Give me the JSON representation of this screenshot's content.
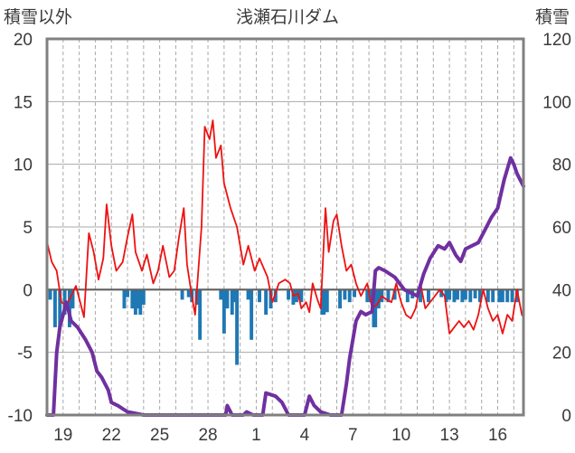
{
  "chart_data": {
    "type": "bar+line",
    "title": "浅瀬石川ダム",
    "left_axis": {
      "label": "積雪以外",
      "ylim": [
        -10,
        20
      ],
      "ticks": [
        "-10",
        "-5",
        "0",
        "5",
        "10",
        "15",
        "20"
      ]
    },
    "right_axis": {
      "label": "積雪",
      "ylim": [
        0,
        120
      ],
      "ticks": [
        "0",
        "20",
        "40",
        "60",
        "80",
        "100",
        "120"
      ]
    },
    "x_ticks": [
      "19",
      "22",
      "25",
      "28",
      "1",
      "4",
      "7",
      "10",
      "13",
      "16"
    ],
    "x_tick_day_index": [
      1,
      4,
      7,
      10,
      13,
      16,
      19,
      22,
      25,
      28
    ],
    "x_range_days": [
      0,
      29.6
    ],
    "grid": {
      "vertical_dashed": true,
      "horizontal": true
    },
    "colors": {
      "temperature": "#ee1111",
      "precipitation": "#1f78b4",
      "snow_depth": "#7030a0",
      "zero_line": "#606060",
      "frame": "#808080",
      "grid": "#a8a8a8"
    },
    "series": [
      {
        "axis": "left",
        "type": "line",
        "color": "#ee1111",
        "points": [
          [
            0,
            3.8
          ],
          [
            0.3,
            2.2
          ],
          [
            0.6,
            1.5
          ],
          [
            0.9,
            -1.0
          ],
          [
            1.2,
            -1.3
          ],
          [
            1.5,
            -0.5
          ],
          [
            1.8,
            0.3
          ],
          [
            2.1,
            -1.2
          ],
          [
            2.3,
            -2.2
          ],
          [
            2.6,
            4.5
          ],
          [
            2.9,
            3.0
          ],
          [
            3.2,
            0.8
          ],
          [
            3.5,
            2.5
          ],
          [
            3.7,
            6.8
          ],
          [
            4.0,
            3.5
          ],
          [
            4.3,
            1.5
          ],
          [
            4.7,
            2.2
          ],
          [
            5.0,
            4.2
          ],
          [
            5.3,
            6.0
          ],
          [
            5.5,
            3.0
          ],
          [
            5.9,
            1.5
          ],
          [
            6.2,
            2.8
          ],
          [
            6.6,
            0.5
          ],
          [
            6.9,
            1.5
          ],
          [
            7.2,
            3.5
          ],
          [
            7.6,
            1.0
          ],
          [
            7.9,
            1.5
          ],
          [
            8.2,
            4.2
          ],
          [
            8.5,
            6.5
          ],
          [
            8.7,
            2.0
          ],
          [
            9.0,
            -0.5
          ],
          [
            9.2,
            -2.0
          ],
          [
            9.6,
            5.0
          ],
          [
            9.8,
            13.0
          ],
          [
            10.1,
            12.0
          ],
          [
            10.3,
            13.5
          ],
          [
            10.5,
            10.5
          ],
          [
            10.8,
            11.5
          ],
          [
            11.0,
            8.5
          ],
          [
            11.4,
            6.5
          ],
          [
            11.8,
            5.0
          ],
          [
            12.2,
            2.0
          ],
          [
            12.5,
            3.5
          ],
          [
            12.9,
            1.5
          ],
          [
            13.2,
            2.5
          ],
          [
            13.7,
            1.0
          ],
          [
            14.0,
            -1.0
          ],
          [
            14.4,
            0.5
          ],
          [
            14.8,
            0.8
          ],
          [
            15.1,
            0.5
          ],
          [
            15.3,
            -0.5
          ],
          [
            15.6,
            -0.3
          ],
          [
            15.8,
            -1.5
          ],
          [
            16.1,
            -1.0
          ],
          [
            16.3,
            -1.8
          ],
          [
            16.5,
            0.5
          ],
          [
            16.8,
            -0.8
          ],
          [
            17.0,
            -1.5
          ],
          [
            17.3,
            6.5
          ],
          [
            17.5,
            3.0
          ],
          [
            17.8,
            5.5
          ],
          [
            18.0,
            6.0
          ],
          [
            18.3,
            3.5
          ],
          [
            18.6,
            1.5
          ],
          [
            18.9,
            2.0
          ],
          [
            19.2,
            0.5
          ],
          [
            19.5,
            -0.5
          ],
          [
            19.9,
            0.5
          ],
          [
            20.2,
            -1.5
          ],
          [
            20.5,
            -1.2
          ],
          [
            20.8,
            -0.5
          ],
          [
            21.1,
            -0.8
          ],
          [
            21.4,
            -1.0
          ],
          [
            21.7,
            0.5
          ],
          [
            22.0,
            -1.0
          ],
          [
            22.3,
            -2.0
          ],
          [
            22.6,
            -2.3
          ],
          [
            22.9,
            -1.5
          ],
          [
            23.2,
            0.5
          ],
          [
            23.5,
            -1.5
          ],
          [
            23.8,
            -1.0
          ],
          [
            24.1,
            -0.5
          ],
          [
            24.4,
            0.0
          ],
          [
            24.7,
            -0.5
          ],
          [
            25.0,
            -3.5
          ],
          [
            25.3,
            -3.0
          ],
          [
            25.6,
            -2.5
          ],
          [
            25.9,
            -3.0
          ],
          [
            26.2,
            -2.5
          ],
          [
            26.5,
            -3.2
          ],
          [
            26.8,
            -2.0
          ],
          [
            27.1,
            0.0
          ],
          [
            27.4,
            -1.5
          ],
          [
            27.7,
            -2.5
          ],
          [
            28.0,
            -2.0
          ],
          [
            28.3,
            -3.5
          ],
          [
            28.6,
            -2.0
          ],
          [
            28.9,
            -2.5
          ],
          [
            29.2,
            0.0
          ],
          [
            29.5,
            -2.0
          ],
          [
            29.6,
            -2.2
          ]
        ]
      },
      {
        "axis": "left",
        "type": "bar",
        "color": "#1f78b4",
        "points": [
          [
            0.2,
            -0.8
          ],
          [
            0.5,
            -3.0
          ],
          [
            0.8,
            -3.0
          ],
          [
            1.1,
            -2.0
          ],
          [
            1.4,
            -3.0
          ],
          [
            1.6,
            -1.5
          ],
          [
            4.8,
            -1.5
          ],
          [
            5.0,
            -0.6
          ],
          [
            5.3,
            -1.5
          ],
          [
            5.5,
            -2.0
          ],
          [
            5.6,
            -1.5
          ],
          [
            5.8,
            -2.0
          ],
          [
            6.0,
            -1.2
          ],
          [
            8.4,
            -0.8
          ],
          [
            8.8,
            -0.6
          ],
          [
            9.0,
            -1.0
          ],
          [
            9.3,
            -1.2
          ],
          [
            9.5,
            -4.0
          ],
          [
            10.8,
            -0.8
          ],
          [
            11.0,
            -3.5
          ],
          [
            11.2,
            -1.5
          ],
          [
            11.5,
            -2.0
          ],
          [
            11.7,
            -1.0
          ],
          [
            11.8,
            -6.0
          ],
          [
            12.5,
            -0.8
          ],
          [
            12.7,
            -4.0
          ],
          [
            13.2,
            -1.0
          ],
          [
            13.6,
            -2.0
          ],
          [
            13.9,
            -1.5
          ],
          [
            14.2,
            -1.0
          ],
          [
            15.0,
            -0.8
          ],
          [
            15.3,
            -1.2
          ],
          [
            15.5,
            -1.0
          ],
          [
            15.6,
            -0.6
          ],
          [
            15.8,
            -1.0
          ],
          [
            17.1,
            -2.0
          ],
          [
            17.2,
            -2.0
          ],
          [
            17.4,
            -1.8
          ],
          [
            18.2,
            -1.5
          ],
          [
            18.5,
            -0.8
          ],
          [
            18.8,
            -1.0
          ],
          [
            19.1,
            -0.6
          ],
          [
            19.9,
            -1.0
          ],
          [
            20.1,
            -1.0
          ],
          [
            20.3,
            -3.0
          ],
          [
            20.4,
            -3.0
          ],
          [
            20.6,
            -1.5
          ],
          [
            20.8,
            -1.0
          ],
          [
            21.2,
            -1.0
          ],
          [
            21.6,
            -0.8
          ],
          [
            22.4,
            -1.0
          ],
          [
            22.7,
            -0.7
          ],
          [
            23.2,
            -1.0
          ],
          [
            23.7,
            -1.0
          ],
          [
            24.5,
            -0.6
          ],
          [
            24.8,
            -1.0
          ],
          [
            25.0,
            -0.8
          ],
          [
            25.3,
            -1.0
          ],
          [
            25.5,
            -0.8
          ],
          [
            25.8,
            -1.0
          ],
          [
            26.0,
            -0.8
          ],
          [
            26.3,
            -1.0
          ],
          [
            26.6,
            -0.7
          ],
          [
            26.9,
            -1.0
          ],
          [
            27.4,
            -1.0
          ],
          [
            27.7,
            -1.0
          ],
          [
            28.1,
            -1.0
          ],
          [
            28.3,
            -1.0
          ],
          [
            28.6,
            -1.0
          ],
          [
            28.9,
            -1.0
          ],
          [
            29.2,
            -1.0
          ]
        ]
      },
      {
        "axis": "right",
        "type": "line",
        "color": "#7030a0",
        "points": [
          [
            0,
            0
          ],
          [
            0.4,
            0
          ],
          [
            0.6,
            20
          ],
          [
            0.8,
            28
          ],
          [
            1.0,
            32
          ],
          [
            1.2,
            36
          ],
          [
            1.5,
            30
          ],
          [
            1.9,
            28
          ],
          [
            2.4,
            24
          ],
          [
            2.8,
            20
          ],
          [
            3.1,
            14
          ],
          [
            3.4,
            12
          ],
          [
            3.8,
            8
          ],
          [
            4.0,
            4
          ],
          [
            4.4,
            3
          ],
          [
            5.0,
            1
          ],
          [
            6.0,
            0
          ],
          [
            6.8,
            0
          ],
          [
            11.1,
            0
          ],
          [
            11.2,
            3
          ],
          [
            11.5,
            0
          ],
          [
            12.2,
            0
          ],
          [
            12.4,
            1
          ],
          [
            12.8,
            0
          ],
          [
            13.2,
            0
          ],
          [
            13.4,
            0
          ],
          [
            13.6,
            7
          ],
          [
            14.2,
            6
          ],
          [
            14.6,
            4
          ],
          [
            15.0,
            0
          ],
          [
            16.0,
            0
          ],
          [
            16.3,
            6
          ],
          [
            16.6,
            3
          ],
          [
            17.0,
            1
          ],
          [
            17.6,
            0
          ],
          [
            18.3,
            0
          ],
          [
            18.6,
            10
          ],
          [
            18.8,
            18
          ],
          [
            19.0,
            24
          ],
          [
            19.2,
            30
          ],
          [
            19.5,
            33
          ],
          [
            19.8,
            32
          ],
          [
            20.2,
            33
          ],
          [
            20.4,
            46
          ],
          [
            20.6,
            47
          ],
          [
            21.0,
            46
          ],
          [
            21.3,
            45
          ],
          [
            21.6,
            44
          ],
          [
            21.9,
            42
          ],
          [
            22.2,
            40
          ],
          [
            22.6,
            39
          ],
          [
            23.0,
            38
          ],
          [
            23.4,
            45
          ],
          [
            23.8,
            50
          ],
          [
            24.3,
            54
          ],
          [
            24.7,
            53
          ],
          [
            25.0,
            55
          ],
          [
            25.4,
            51
          ],
          [
            25.7,
            49
          ],
          [
            26.0,
            53
          ],
          [
            26.4,
            54
          ],
          [
            26.8,
            55
          ],
          [
            27.2,
            59
          ],
          [
            27.6,
            63
          ],
          [
            28.0,
            66
          ],
          [
            28.4,
            75
          ],
          [
            28.8,
            82
          ],
          [
            29.0,
            80
          ],
          [
            29.2,
            77
          ],
          [
            29.6,
            73
          ]
        ]
      }
    ]
  }
}
